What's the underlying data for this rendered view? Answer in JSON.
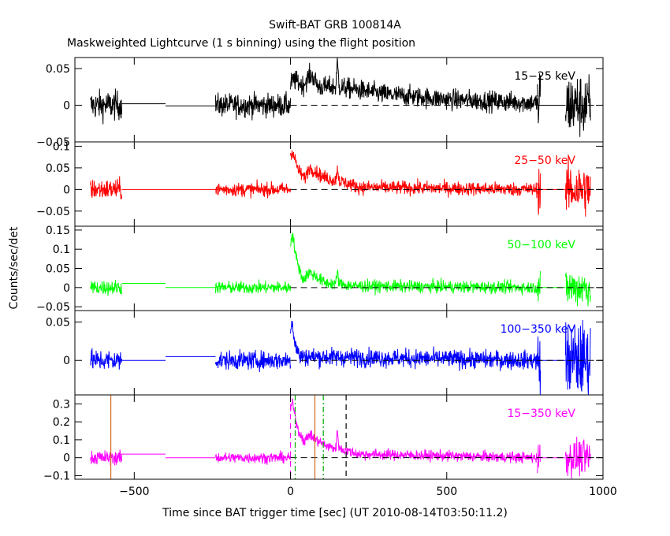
{
  "chart_data": {
    "type": "line",
    "title": "Swift-BAT GRB 100814A",
    "subtitle": "Maskweighted Lightcurve (1 s binning) using the flight position",
    "xlabel": "Time since BAT trigger time [sec] (UT 2010-08-14T03:50:11.2)",
    "ylabel": "Counts/sec/det",
    "xlim": [
      -690,
      1000
    ],
    "xticks": [
      -500,
      0,
      500,
      1000
    ],
    "xtick_labels": [
      "−500",
      "0",
      "500",
      "1000"
    ],
    "grid": false,
    "panels": [
      {
        "name": "15−25 keV",
        "color": "#000000",
        "ylim": [
          -0.05,
          0.065
        ],
        "yticks": [
          -0.05,
          0,
          0.05
        ],
        "ytick_labels": [
          "−0.05",
          "0",
          "0.05"
        ],
        "segments": [
          {
            "type": "noise",
            "x": [
              -640,
              -540
            ],
            "noise": 0.01
          },
          {
            "type": "flat",
            "x": [
              -540,
              -400
            ],
            "y": 0.002
          },
          {
            "type": "flat",
            "x": [
              -400,
              -240
            ],
            "y": -0.001
          },
          {
            "type": "noise",
            "x": [
              -240,
              0
            ],
            "noise": 0.008
          },
          {
            "type": "profile",
            "x": [
              0,
              790
            ],
            "noise": 0.007,
            "points": [
              [
                0,
                0.028
              ],
              [
                10,
                0.035
              ],
              [
                40,
                0.027
              ],
              [
                60,
                0.04
              ],
              [
                70,
                0.04
              ],
              [
                90,
                0.025
              ],
              [
                145,
                0.025
              ],
              [
                150,
                0.058
              ],
              [
                156,
                0.025
              ],
              [
                300,
                0.015
              ],
              [
                500,
                0.008
              ],
              [
                790,
                0.003
              ]
            ]
          },
          {
            "type": "noise",
            "x": [
              790,
              800
            ],
            "noise": 0.03
          },
          {
            "type": "flat",
            "x": [
              800,
              880
            ],
            "y": 0.0
          },
          {
            "type": "noise",
            "x": [
              880,
              960
            ],
            "noise": 0.022
          }
        ]
      },
      {
        "name": "25−50 keV",
        "color": "#ff0000",
        "ylim": [
          -0.085,
          0.11
        ],
        "yticks": [
          -0.05,
          0,
          0.05,
          0.1
        ],
        "ytick_labels": [
          "−0.05",
          "0",
          "0.05",
          "0.1"
        ],
        "segments": [
          {
            "type": "noise",
            "x": [
              -640,
              -540
            ],
            "noise": 0.012
          },
          {
            "type": "flat",
            "x": [
              -540,
              -400
            ],
            "y": 0.0
          },
          {
            "type": "flat",
            "x": [
              -400,
              -240
            ],
            "y": 0.0
          },
          {
            "type": "noise",
            "x": [
              -240,
              0
            ],
            "noise": 0.008
          },
          {
            "type": "profile",
            "x": [
              0,
              790
            ],
            "noise": 0.008,
            "points": [
              [
                0,
                0.08
              ],
              [
                5,
                0.09
              ],
              [
                25,
                0.045
              ],
              [
                45,
                0.025
              ],
              [
                60,
                0.05
              ],
              [
                75,
                0.045
              ],
              [
                100,
                0.03
              ],
              [
                145,
                0.02
              ],
              [
                150,
                0.05
              ],
              [
                156,
                0.02
              ],
              [
                220,
                0.005
              ],
              [
                790,
                0.0
              ]
            ]
          },
          {
            "type": "noise",
            "x": [
              790,
              800
            ],
            "noise": 0.03
          },
          {
            "type": "flat",
            "x": [
              800,
              880
            ],
            "y": 0.0
          },
          {
            "type": "noise",
            "x": [
              880,
              960
            ],
            "noise": 0.03
          }
        ]
      },
      {
        "name": "50−100 keV",
        "color": "#00ff00",
        "ylim": [
          -0.06,
          0.16
        ],
        "yticks": [
          -0.05,
          0,
          0.05,
          0.1,
          0.15
        ],
        "ytick_labels": [
          "−0.05",
          "0",
          "0.05",
          "0.1",
          "0.15"
        ],
        "segments": [
          {
            "type": "noise",
            "x": [
              -640,
              -540
            ],
            "noise": 0.01
          },
          {
            "type": "flat",
            "x": [
              -540,
              -400
            ],
            "y": 0.011
          },
          {
            "type": "flat",
            "x": [
              -400,
              -240
            ],
            "y": 0.0
          },
          {
            "type": "noise",
            "x": [
              -240,
              0
            ],
            "noise": 0.008
          },
          {
            "type": "profile",
            "x": [
              0,
              790
            ],
            "noise": 0.008,
            "points": [
              [
                0,
                0.11
              ],
              [
                5,
                0.145
              ],
              [
                20,
                0.07
              ],
              [
                40,
                0.02
              ],
              [
                60,
                0.04
              ],
              [
                80,
                0.03
              ],
              [
                110,
                0.012
              ],
              [
                145,
                0.01
              ],
              [
                150,
                0.04
              ],
              [
                156,
                0.01
              ],
              [
                200,
                0.004
              ],
              [
                790,
                0.0
              ]
            ]
          },
          {
            "type": "noise",
            "x": [
              790,
              800
            ],
            "noise": 0.03
          },
          {
            "type": "flat",
            "x": [
              800,
              880
            ],
            "y": 0.0
          },
          {
            "type": "noise",
            "x": [
              880,
              960
            ],
            "noise": 0.025
          }
        ]
      },
      {
        "name": "100−350 keV",
        "color": "#0000ff",
        "ylim": [
          -0.045,
          0.065
        ],
        "yticks": [
          0,
          0.05
        ],
        "ytick_labels": [
          "0",
          "0.05"
        ],
        "segments": [
          {
            "type": "noise",
            "x": [
              -640,
              -540
            ],
            "noise": 0.007
          },
          {
            "type": "flat",
            "x": [
              -540,
              -400
            ],
            "y": 0.0
          },
          {
            "type": "flat",
            "x": [
              -400,
              -240
            ],
            "y": 0.005
          },
          {
            "type": "noise",
            "x": [
              -240,
              0
            ],
            "noise": 0.006
          },
          {
            "type": "profile",
            "x": [
              0,
              790
            ],
            "noise": 0.006,
            "points": [
              [
                0,
                0.04
              ],
              [
                5,
                0.052
              ],
              [
                15,
                0.02
              ],
              [
                30,
                0.005
              ],
              [
                790,
                0.0
              ]
            ]
          },
          {
            "type": "noise",
            "x": [
              790,
              800
            ],
            "noise": 0.025
          },
          {
            "type": "flat",
            "x": [
              800,
              880
            ],
            "y": 0.0
          },
          {
            "type": "noise",
            "x": [
              880,
              960
            ],
            "noise": 0.025
          }
        ]
      },
      {
        "name": "15−350 keV",
        "color": "#ff00ff",
        "ylim": [
          -0.12,
          0.35
        ],
        "yticks": [
          -0.1,
          0,
          0.1,
          0.2,
          0.3
        ],
        "ytick_labels": [
          "−0.1",
          "0",
          "0.1",
          "0.2",
          "0.3"
        ],
        "segments": [
          {
            "type": "noise",
            "x": [
              -640,
              -540
            ],
            "noise": 0.02
          },
          {
            "type": "flat",
            "x": [
              -540,
              -400
            ],
            "y": 0.02
          },
          {
            "type": "flat",
            "x": [
              -400,
              -240
            ],
            "y": 0.0
          },
          {
            "type": "noise",
            "x": [
              -240,
              0
            ],
            "noise": 0.015
          },
          {
            "type": "profile",
            "x": [
              0,
              790
            ],
            "noise": 0.015,
            "points": [
              [
                0,
                0.27
              ],
              [
                5,
                0.31
              ],
              [
                25,
                0.15
              ],
              [
                45,
                0.09
              ],
              [
                60,
                0.13
              ],
              [
                75,
                0.11
              ],
              [
                110,
                0.07
              ],
              [
                145,
                0.05
              ],
              [
                150,
                0.15
              ],
              [
                156,
                0.05
              ],
              [
                220,
                0.02
              ],
              [
                790,
                0.0
              ]
            ]
          },
          {
            "type": "noise",
            "x": [
              790,
              800
            ],
            "noise": 0.05
          },
          {
            "type": "flat",
            "x": [
              800,
              880
            ],
            "y": 0.0
          },
          {
            "type": "noise",
            "x": [
              880,
              960
            ],
            "noise": 0.05
          }
        ],
        "markers": [
          {
            "x": -575,
            "color": "#d2691e",
            "style": "solid"
          },
          {
            "x": 0,
            "color": "#ff00ff",
            "style": "dashed"
          },
          {
            "x": 15,
            "color": "#00aa00",
            "style": "dashdot"
          },
          {
            "x": 78,
            "color": "#d2691e",
            "style": "solid"
          },
          {
            "x": 105,
            "color": "#00aa00",
            "style": "dashdot"
          },
          {
            "x": 178,
            "color": "#000000",
            "style": "dashed"
          }
        ]
      }
    ]
  }
}
